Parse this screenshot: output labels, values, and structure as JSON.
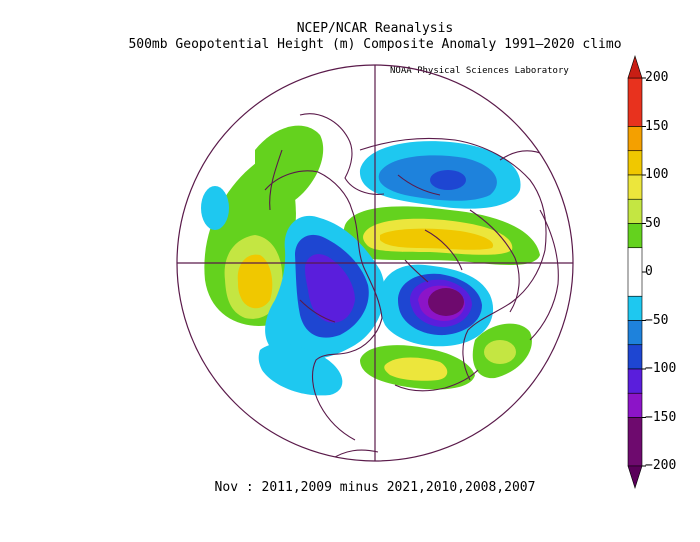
{
  "title": {
    "line1": "NCEP/NCAR Reanalysis",
    "line2": "500mb Geopotential Height (m) Composite Anomaly 1991–2020 climo",
    "credit": "NOAA Physical Sciences Laboratory"
  },
  "subtitle": "Nov : 2011,2009 minus 2021,2010,2008,2007",
  "colorbar": {
    "labels": [
      "200",
      "150",
      "100",
      "50",
      "0",
      "−50",
      "−100",
      "−150",
      "−200"
    ],
    "bins": [
      {
        "range": [
          150,
          200
        ],
        "color": "#e8321e"
      },
      {
        "range": [
          125,
          150
        ],
        "color": "#f4a000"
      },
      {
        "range": [
          100,
          125
        ],
        "color": "#f0c800"
      },
      {
        "range": [
          75,
          100
        ],
        "color": "#ece63c"
      },
      {
        "range": [
          50,
          75
        ],
        "color": "#c4e642"
      },
      {
        "range": [
          25,
          50
        ],
        "color": "#64d21e"
      },
      {
        "range": [
          -25,
          25
        ],
        "color": "#ffffff"
      },
      {
        "range": [
          -50,
          -25
        ],
        "color": "#1ec8f0"
      },
      {
        "range": [
          -75,
          -50
        ],
        "color": "#1e82dc"
      },
      {
        "range": [
          -100,
          -75
        ],
        "color": "#1e46d2"
      },
      {
        "range": [
          -125,
          -100
        ],
        "color": "#5a1edc"
      },
      {
        "range": [
          -150,
          -125
        ],
        "color": "#8c14c8"
      },
      {
        "range": [
          -200,
          -150
        ],
        "color": "#6e0a6e"
      }
    ],
    "over_color": "#c81e14",
    "under_color": "#5a005a"
  },
  "map": {
    "projection": "north polar stereographic",
    "outline_color": "#5a1a4a"
  }
}
